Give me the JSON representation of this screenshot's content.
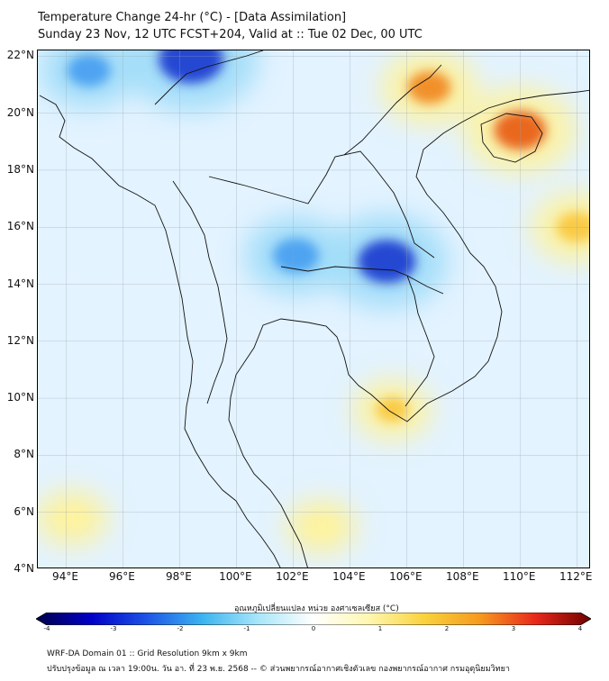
{
  "header": {
    "title": "Temperature Change 24-hr (°C) - [Data Assimilation]",
    "subtitle": "Sunday 23 Nov, 12 UTC FCST+204, Valid at :: Tue 02 Dec, 00 UTC"
  },
  "map": {
    "lon_range": [
      93,
      112.5
    ],
    "lat_range": [
      4,
      22.2
    ],
    "lat_labels": [
      "22°N",
      "20°N",
      "18°N",
      "16°N",
      "14°N",
      "12°N",
      "10°N",
      "8°N",
      "6°N",
      "4°N"
    ],
    "lat_values": [
      22,
      20,
      18,
      16,
      14,
      12,
      10,
      8,
      6,
      4
    ],
    "lon_labels": [
      "94°E",
      "96°E",
      "98°E",
      "100°E",
      "102°E",
      "104°E",
      "106°E",
      "108°E",
      "110°E",
      "112°E"
    ],
    "lon_values": [
      94,
      96,
      98,
      100,
      102,
      104,
      106,
      108,
      110,
      112
    ],
    "colors": {
      "background": "#e3f3ff",
      "ocean_tint": "#d5efff",
      "cold_strong": "#1c3fd0",
      "cold": "#4aa0f0",
      "cool": "#9fdcf8",
      "warm_light": "#fdf2a0",
      "warm": "#f9c840",
      "hot": "#f08a22",
      "hotspot": "#e86015",
      "coastline": "#111111"
    },
    "anomalies": [
      {
        "label": "cold core Cambodia-Laos",
        "lon": 105.3,
        "lat": 14.8,
        "value": -3.0
      },
      {
        "label": "cold Thailand northeast",
        "lon": 102.1,
        "lat": 15.0,
        "value": -2.2
      },
      {
        "label": "cold Myanmar north",
        "lon": 98.4,
        "lat": 21.9,
        "value": -3.5
      },
      {
        "label": "cold Bay of Bengal north",
        "lon": 94.8,
        "lat": 21.5,
        "value": -2.0
      },
      {
        "label": "warm Hainan",
        "lon": 110.0,
        "lat": 19.4,
        "value": 2.6
      },
      {
        "label": "warm Gulf of Tonkin",
        "lon": 106.8,
        "lat": 20.9,
        "value": 2.0
      },
      {
        "label": "warm South China Sea",
        "lon": 112.0,
        "lat": 16.0,
        "value": 1.8
      },
      {
        "label": "warm Mekong Delta",
        "lon": 105.5,
        "lat": 9.6,
        "value": 1.3
      },
      {
        "label": "warm Andaman south",
        "lon": 94.2,
        "lat": 5.8,
        "value": 1.1
      },
      {
        "label": "warm Malaysia east",
        "lon": 103.0,
        "lat": 5.5,
        "value": 1.0
      }
    ]
  },
  "colorbar": {
    "title": "อุณหภูมิเปลี่ยนแปลง หน่วย องศาเซลเซียส (°C)",
    "range": [
      -4,
      4
    ],
    "tick_labels": [
      "-4",
      "-3",
      "-2",
      "-1",
      "0",
      "1",
      "2",
      "3",
      "4"
    ],
    "tick_values": [
      -4,
      -3,
      -2,
      -1,
      0,
      1,
      2,
      3,
      4
    ],
    "stops": [
      "#00004a",
      "#0000c8",
      "#1e55e6",
      "#3cb4f0",
      "#a8e6fa",
      "#ffffff",
      "#fff7b0",
      "#f9d23c",
      "#f59a1e",
      "#e8281a",
      "#6e0000"
    ]
  },
  "footer": {
    "line1": "WRF-DA Domain 01 :: Grid Resolution 9km x 9km",
    "line2": "ปรับปรุงข้อมูล ณ เวลา 19:00น. วัน อา. ที่ 23 พ.ย. 2568 -- © ส่วนพยากรณ์อากาศเชิงตัวเลข กองพยากรณ์อากาศ กรมอุตุนิยมวิทยา"
  }
}
